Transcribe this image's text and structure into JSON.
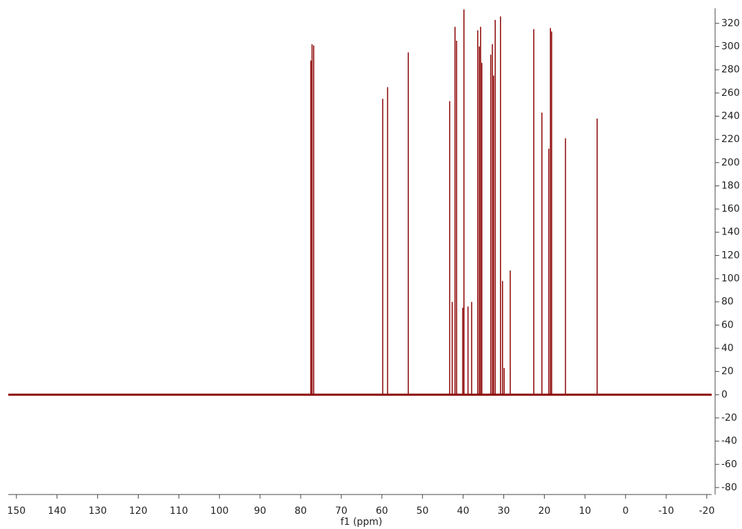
{
  "chart_data": {
    "type": "spectrum",
    "x_label": "f1 (ppm)",
    "color": "#8b0000",
    "x": [
      77.5,
      77.2,
      76.8,
      59.8,
      58.6,
      53.5,
      43.3,
      42.7,
      42.0,
      41.6,
      40.1,
      39.8,
      38.8,
      37.9,
      36.4,
      36.0,
      35.7,
      35.4,
      33.2,
      32.8,
      32.5,
      32.1,
      30.8,
      30.3,
      29.9,
      28.4,
      22.6,
      20.6,
      18.9,
      18.5,
      18.2,
      14.8,
      7.0
    ],
    "values": [
      288,
      302,
      301,
      255,
      265,
      295,
      253,
      80,
      317,
      305,
      75,
      332,
      76,
      80,
      314,
      300,
      317,
      286,
      293,
      302,
      275,
      323,
      326,
      98,
      23,
      107,
      315,
      243,
      212,
      316,
      313,
      221,
      238
    ],
    "xlim": [
      152,
      -21.2
    ],
    "ylim": [
      -86,
      333
    ],
    "xticks": [
      150,
      140,
      130,
      120,
      110,
      100,
      90,
      80,
      70,
      60,
      50,
      40,
      30,
      20,
      10,
      0,
      -10,
      -20
    ],
    "yticks": [
      -80,
      -60,
      -40,
      -20,
      0,
      20,
      40,
      60,
      80,
      100,
      120,
      140,
      160,
      180,
      200,
      220,
      240,
      260,
      280,
      300,
      320
    ]
  }
}
